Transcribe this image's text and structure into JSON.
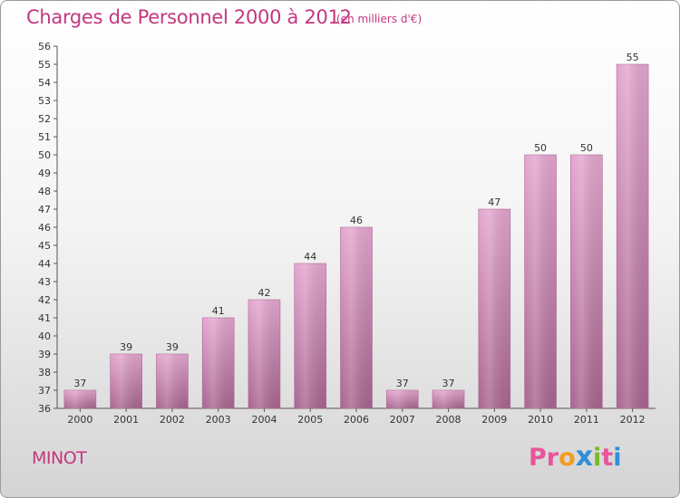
{
  "header": {
    "title": "Charges de Personnel 2000 à 2012",
    "subtitle": "(en milliers d'€)"
  },
  "footer": {
    "commune": "MINOT",
    "logo_text": "Proxiti",
    "logo_colors": [
      "#e8559a",
      "#e8559a",
      "#f39c1f",
      "#2f8fd8",
      "#7ab829",
      "#e8559a",
      "#2f8fd8"
    ]
  },
  "colors": {
    "bar_top": "#e4a6cf",
    "bar_bottom": "#a8658f",
    "text_accent": "#c4377f"
  },
  "chart_data": {
    "type": "bar",
    "categories": [
      "2000",
      "2001",
      "2002",
      "2003",
      "2004",
      "2005",
      "2006",
      "2007",
      "2008",
      "2009",
      "2010",
      "2011",
      "2012"
    ],
    "values": [
      37,
      39,
      39,
      41,
      42,
      44,
      46,
      37,
      37,
      47,
      50,
      50,
      55
    ],
    "ylim": [
      36,
      56
    ],
    "yticks": [
      36,
      37,
      38,
      39,
      40,
      41,
      42,
      43,
      44,
      45,
      46,
      47,
      48,
      49,
      50,
      51,
      52,
      53,
      54,
      55,
      56
    ],
    "grid": false,
    "data_labels": true
  }
}
